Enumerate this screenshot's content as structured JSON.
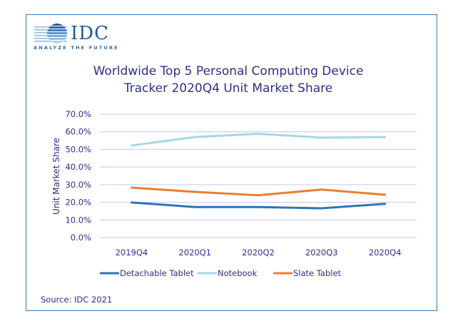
{
  "logo": {
    "name": "IDC",
    "tagline": "ANALYZE THE FUTURE"
  },
  "title_line1": "Worldwide Top 5 Personal Computing Device",
  "title_line2": "Tracker 2020Q4 Unit Market Share",
  "source": "Source: IDC 2021",
  "chart_data": {
    "type": "line",
    "title": "Worldwide Top 5 Personal Computing Device Tracker 2020Q4 Unit Market Share",
    "xlabel": "",
    "ylabel": "Unit Market Share",
    "categories": [
      "2019Q4",
      "2020Q1",
      "2020Q2",
      "2020Q3",
      "2020Q4"
    ],
    "ylim": [
      0,
      70
    ],
    "yticks": [
      "0.0%",
      "10.0%",
      "20.0%",
      "30.0%",
      "40.0%",
      "50.0%",
      "60.0%",
      "70.0%"
    ],
    "grid": true,
    "legend_position": "bottom",
    "series": [
      {
        "name": "Detachable Tablet",
        "color": "#2e75b6",
        "values": [
          19.9,
          17.3,
          17.3,
          16.6,
          19.1
        ]
      },
      {
        "name": "Notebook",
        "color": "#a5d8e2",
        "values": [
          52.2,
          57.0,
          58.8,
          56.7,
          57.0
        ]
      },
      {
        "name": "Slate Tablet",
        "color": "#ed7d31",
        "values": [
          28.3,
          25.9,
          24.0,
          27.2,
          24.3
        ]
      }
    ]
  }
}
